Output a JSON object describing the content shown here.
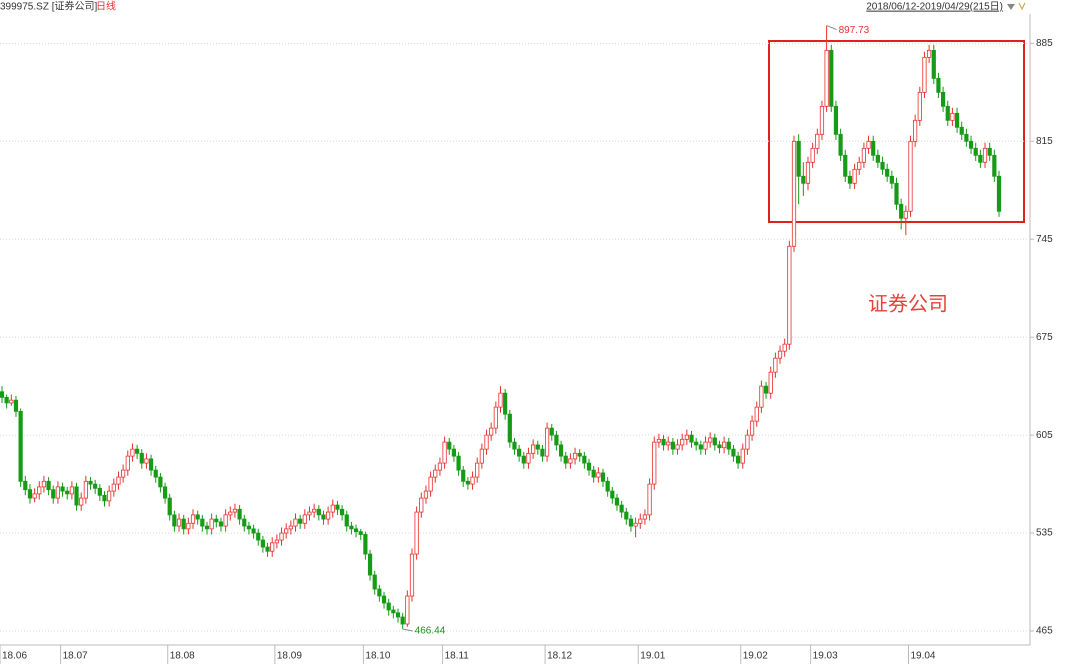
{
  "chart_data": {
    "type": "candlestick",
    "symbol": "399975.SZ [证券公司]",
    "period": "日线",
    "range": "2018/06/12-2019/04/29(215日)",
    "annotation": "证券公司",
    "high_label": "897.73",
    "low_label": "466.44",
    "up_color": "#e8302e",
    "down_color": "#169b16",
    "ylim": [
      455,
      916
    ],
    "yticks": [
      465,
      535,
      605,
      675,
      745,
      815,
      885
    ],
    "grid": true,
    "xlim": [
      0,
      214
    ],
    "xticks": [
      {
        "value": 0,
        "label": "18.06"
      },
      {
        "value": 13,
        "label": "18.07"
      },
      {
        "value": 36,
        "label": "18.08"
      },
      {
        "value": 59,
        "label": "18.09"
      },
      {
        "value": 78,
        "label": "18.10"
      },
      {
        "value": 95,
        "label": "18.11"
      },
      {
        "value": 117,
        "label": "18.12"
      },
      {
        "value": 137,
        "label": "19.01"
      },
      {
        "value": 159,
        "label": "19.02"
      },
      {
        "value": 174,
        "label": "19.03"
      },
      {
        "value": 195,
        "label": "19.04"
      }
    ],
    "candles": [
      [
        636,
        640,
        628,
        632
      ],
      [
        632,
        634,
        624,
        628
      ],
      [
        628,
        634,
        626,
        630
      ],
      [
        630,
        633,
        618,
        622
      ],
      [
        622,
        624,
        568,
        572
      ],
      [
        572,
        576,
        562,
        566
      ],
      [
        566,
        570,
        556,
        560
      ],
      [
        560,
        567,
        557,
        563
      ],
      [
        563,
        572,
        559,
        568
      ],
      [
        568,
        576,
        564,
        572
      ],
      [
        572,
        575,
        562,
        566
      ],
      [
        566,
        569,
        556,
        560
      ],
      [
        560,
        572,
        556,
        568
      ],
      [
        568,
        571,
        561,
        565
      ],
      [
        565,
        568,
        559,
        563
      ],
      [
        563,
        572,
        559,
        568
      ],
      [
        568,
        571,
        551,
        555
      ],
      [
        555,
        564,
        551,
        560
      ],
      [
        560,
        576,
        556,
        572
      ],
      [
        572,
        575,
        566,
        570
      ],
      [
        570,
        573,
        563,
        567
      ],
      [
        567,
        570,
        558,
        562
      ],
      [
        562,
        565,
        554,
        558
      ],
      [
        558,
        569,
        554,
        565
      ],
      [
        565,
        574,
        561,
        570
      ],
      [
        570,
        579,
        566,
        575
      ],
      [
        575,
        584,
        571,
        580
      ],
      [
        580,
        594,
        576,
        590
      ],
      [
        590,
        599,
        586,
        595
      ],
      [
        595,
        598,
        588,
        592
      ],
      [
        592,
        595,
        581,
        585
      ],
      [
        585,
        592,
        581,
        588
      ],
      [
        588,
        591,
        576,
        580
      ],
      [
        580,
        583,
        571,
        575
      ],
      [
        575,
        578,
        564,
        568
      ],
      [
        568,
        571,
        556,
        560
      ],
      [
        560,
        563,
        544,
        548
      ],
      [
        548,
        551,
        536,
        540
      ],
      [
        540,
        549,
        536,
        545
      ],
      [
        545,
        548,
        534,
        538
      ],
      [
        538,
        546,
        534,
        542
      ],
      [
        542,
        552,
        538,
        548
      ],
      [
        548,
        551,
        541,
        545
      ],
      [
        545,
        548,
        536,
        540
      ],
      [
        540,
        543,
        534,
        538
      ],
      [
        538,
        549,
        534,
        545
      ],
      [
        545,
        548,
        539,
        543
      ],
      [
        543,
        546,
        536,
        540
      ],
      [
        540,
        552,
        536,
        548
      ],
      [
        548,
        554,
        544,
        550
      ],
      [
        550,
        556,
        546,
        552
      ],
      [
        552,
        555,
        541,
        545
      ],
      [
        545,
        548,
        536,
        540
      ],
      [
        540,
        543,
        534,
        538
      ],
      [
        538,
        541,
        531,
        535
      ],
      [
        535,
        538,
        526,
        530
      ],
      [
        530,
        533,
        521,
        525
      ],
      [
        525,
        528,
        518,
        522
      ],
      [
        522,
        532,
        518,
        528
      ],
      [
        528,
        534,
        524,
        530
      ],
      [
        530,
        539,
        526,
        535
      ],
      [
        535,
        542,
        531,
        538
      ],
      [
        538,
        544,
        534,
        540
      ],
      [
        540,
        549,
        536,
        545
      ],
      [
        545,
        548,
        538,
        542
      ],
      [
        542,
        552,
        538,
        548
      ],
      [
        548,
        554,
        544,
        550
      ],
      [
        550,
        556,
        546,
        552
      ],
      [
        552,
        555,
        544,
        548
      ],
      [
        548,
        551,
        541,
        545
      ],
      [
        545,
        554,
        541,
        550
      ],
      [
        550,
        559,
        546,
        555
      ],
      [
        555,
        558,
        548,
        552
      ],
      [
        552,
        555,
        544,
        548
      ],
      [
        548,
        551,
        536,
        540
      ],
      [
        540,
        543,
        534,
        538
      ],
      [
        538,
        541,
        532,
        536
      ],
      [
        536,
        538,
        530,
        534
      ],
      [
        534,
        536,
        516,
        520
      ],
      [
        520,
        523,
        501,
        505
      ],
      [
        505,
        508,
        491,
        495
      ],
      [
        495,
        498,
        486,
        490
      ],
      [
        490,
        493,
        481,
        485
      ],
      [
        485,
        488,
        476,
        480
      ],
      [
        480,
        483,
        474,
        478
      ],
      [
        478,
        481,
        471,
        475
      ],
      [
        475,
        478,
        466.44,
        470
      ],
      [
        470,
        494,
        468,
        490
      ],
      [
        490,
        524,
        486,
        520
      ],
      [
        520,
        554,
        516,
        550
      ],
      [
        550,
        564,
        546,
        560
      ],
      [
        560,
        569,
        556,
        565
      ],
      [
        565,
        579,
        561,
        575
      ],
      [
        575,
        584,
        571,
        580
      ],
      [
        580,
        589,
        576,
        585
      ],
      [
        585,
        604,
        581,
        600
      ],
      [
        600,
        603,
        591,
        595
      ],
      [
        595,
        598,
        586,
        590
      ],
      [
        590,
        593,
        576,
        580
      ],
      [
        580,
        583,
        568,
        572
      ],
      [
        572,
        575,
        566,
        570
      ],
      [
        570,
        579,
        566,
        575
      ],
      [
        575,
        589,
        571,
        585
      ],
      [
        585,
        599,
        581,
        595
      ],
      [
        595,
        609,
        591,
        605
      ],
      [
        605,
        614,
        601,
        610
      ],
      [
        610,
        629,
        606,
        625
      ],
      [
        625,
        640,
        621,
        635
      ],
      [
        635,
        638,
        616,
        620
      ],
      [
        620,
        623,
        596,
        600
      ],
      [
        600,
        603,
        591,
        595
      ],
      [
        595,
        598,
        586,
        590
      ],
      [
        590,
        593,
        581,
        585
      ],
      [
        585,
        596,
        581,
        592
      ],
      [
        592,
        602,
        588,
        598
      ],
      [
        598,
        601,
        591,
        595
      ],
      [
        595,
        598,
        586,
        590
      ],
      [
        590,
        614,
        586,
        610
      ],
      [
        610,
        613,
        601,
        605
      ],
      [
        605,
        608,
        594,
        598
      ],
      [
        598,
        601,
        586,
        590
      ],
      [
        590,
        593,
        581,
        585
      ],
      [
        585,
        592,
        581,
        588
      ],
      [
        588,
        596,
        584,
        592
      ],
      [
        592,
        595,
        586,
        590
      ],
      [
        590,
        593,
        581,
        585
      ],
      [
        585,
        588,
        576,
        580
      ],
      [
        580,
        583,
        571,
        575
      ],
      [
        575,
        582,
        571,
        578
      ],
      [
        578,
        581,
        568,
        572
      ],
      [
        572,
        575,
        561,
        565
      ],
      [
        565,
        568,
        556,
        560
      ],
      [
        560,
        563,
        551,
        555
      ],
      [
        555,
        558,
        546,
        550
      ],
      [
        550,
        553,
        541,
        545
      ],
      [
        545,
        548,
        536,
        540
      ],
      [
        540,
        546,
        532,
        542
      ],
      [
        542,
        549,
        538,
        545
      ],
      [
        545,
        552,
        541,
        548
      ],
      [
        548,
        574,
        544,
        570
      ],
      [
        570,
        604,
        566,
        600
      ],
      [
        600,
        606,
        596,
        602
      ],
      [
        602,
        605,
        594,
        598
      ],
      [
        598,
        604,
        594,
        600
      ],
      [
        600,
        603,
        591,
        595
      ],
      [
        595,
        602,
        591,
        598
      ],
      [
        598,
        606,
        594,
        602
      ],
      [
        602,
        609,
        598,
        605
      ],
      [
        605,
        608,
        596,
        600
      ],
      [
        600,
        603,
        594,
        598
      ],
      [
        598,
        601,
        591,
        595
      ],
      [
        595,
        604,
        591,
        600
      ],
      [
        600,
        607,
        596,
        603
      ],
      [
        603,
        606,
        594,
        598
      ],
      [
        598,
        601,
        592,
        596
      ],
      [
        596,
        604,
        592,
        600
      ],
      [
        600,
        603,
        591,
        595
      ],
      [
        595,
        598,
        586,
        590
      ],
      [
        590,
        593,
        581,
        585
      ],
      [
        585,
        599,
        581,
        595
      ],
      [
        595,
        609,
        591,
        605
      ],
      [
        605,
        619,
        601,
        615
      ],
      [
        615,
        629,
        611,
        625
      ],
      [
        625,
        644,
        621,
        640
      ],
      [
        640,
        643,
        631,
        635
      ],
      [
        635,
        654,
        631,
        650
      ],
      [
        650,
        664,
        646,
        660
      ],
      [
        660,
        669,
        656,
        665
      ],
      [
        665,
        674,
        661,
        670
      ],
      [
        670,
        744,
        666,
        740
      ],
      [
        740,
        819,
        736,
        815
      ],
      [
        815,
        820,
        770,
        790
      ],
      [
        790,
        800,
        776,
        785
      ],
      [
        785,
        804,
        780,
        800
      ],
      [
        800,
        814,
        796,
        810
      ],
      [
        810,
        824,
        806,
        820
      ],
      [
        820,
        844,
        816,
        840
      ],
      [
        840,
        897.73,
        836,
        880
      ],
      [
        880,
        884,
        836,
        840
      ],
      [
        840,
        844,
        816,
        820
      ],
      [
        820,
        824,
        801,
        805
      ],
      [
        805,
        809,
        786,
        790
      ],
      [
        790,
        794,
        781,
        785
      ],
      [
        785,
        799,
        781,
        795
      ],
      [
        795,
        804,
        791,
        800
      ],
      [
        800,
        814,
        796,
        810
      ],
      [
        810,
        819,
        806,
        815
      ],
      [
        815,
        819,
        801,
        805
      ],
      [
        805,
        809,
        796,
        800
      ],
      [
        800,
        804,
        791,
        795
      ],
      [
        795,
        799,
        786,
        790
      ],
      [
        790,
        794,
        781,
        785
      ],
      [
        785,
        789,
        766,
        770
      ],
      [
        770,
        774,
        752,
        760
      ],
      [
        760,
        769,
        748,
        765
      ],
      [
        765,
        819,
        761,
        815
      ],
      [
        815,
        834,
        811,
        830
      ],
      [
        830,
        854,
        826,
        850
      ],
      [
        850,
        879,
        846,
        875
      ],
      [
        875,
        884,
        871,
        880
      ],
      [
        880,
        884,
        856,
        860
      ],
      [
        860,
        864,
        846,
        850
      ],
      [
        850,
        854,
        836,
        840
      ],
      [
        840,
        844,
        826,
        830
      ],
      [
        830,
        839,
        826,
        835
      ],
      [
        835,
        839,
        821,
        825
      ],
      [
        825,
        829,
        816,
        820
      ],
      [
        820,
        824,
        811,
        815
      ],
      [
        815,
        819,
        806,
        810
      ],
      [
        810,
        814,
        801,
        805
      ],
      [
        805,
        809,
        796,
        800
      ],
      [
        800,
        814,
        796,
        810
      ],
      [
        810,
        814,
        801,
        805
      ],
      [
        805,
        809,
        786,
        790
      ],
      [
        790,
        794,
        761,
        765
      ]
    ]
  }
}
